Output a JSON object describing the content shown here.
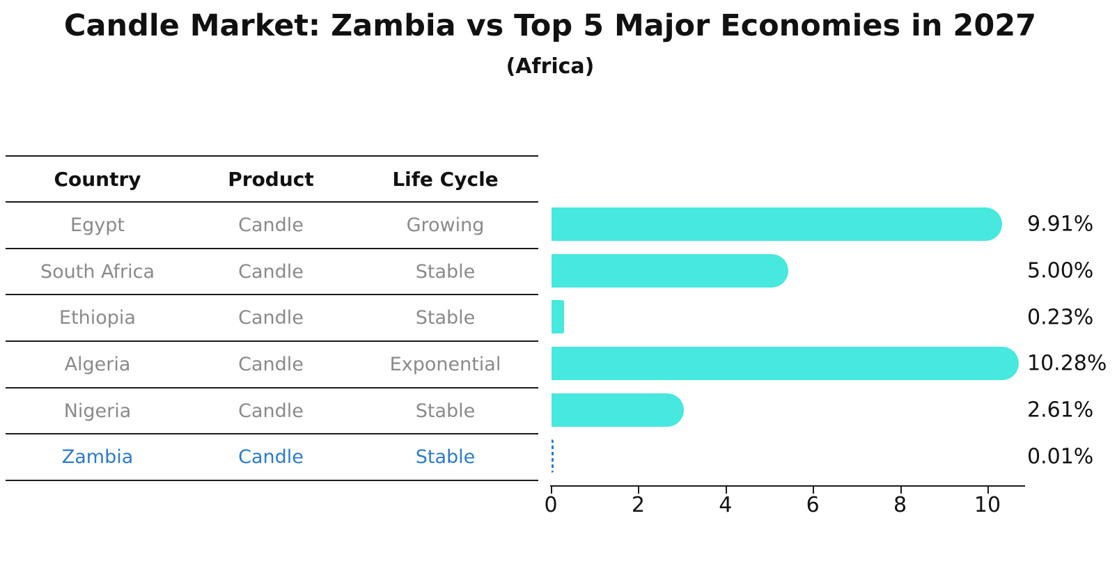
{
  "title": "Candle Market: Zambia vs Top 5 Major Economies in 2027",
  "subtitle": "(Africa)",
  "table": {
    "headers": [
      "Country",
      "Product",
      "Life Cycle"
    ],
    "rows": [
      {
        "country": "Egypt",
        "product": "Candle",
        "life_cycle": "Growing",
        "highlighted": false
      },
      {
        "country": "South Africa",
        "product": "Candle",
        "life_cycle": "Stable",
        "highlighted": false
      },
      {
        "country": "Ethiopia",
        "product": "Candle",
        "life_cycle": "Stable",
        "highlighted": false
      },
      {
        "country": "Algeria",
        "product": "Candle",
        "life_cycle": "Exponential",
        "highlighted": false
      },
      {
        "country": "Nigeria",
        "product": "Candle",
        "life_cycle": "Stable",
        "highlighted": true
      }
    ],
    "highlight_row": {
      "country": "Zambia",
      "product": "Candle",
      "life_cycle": "Stable"
    }
  },
  "chart_data": {
    "type": "bar",
    "orientation": "horizontal",
    "title": "Candle Market: Zambia vs Top 5 Major Economies in 2027",
    "subtitle": "(Africa)",
    "categories": [
      "Egypt",
      "South Africa",
      "Ethiopia",
      "Algeria",
      "Nigeria",
      "Zambia"
    ],
    "values": [
      9.91,
      5.0,
      0.23,
      10.28,
      2.61,
      0.01
    ],
    "value_labels": [
      "9.91%",
      "5.00%",
      "0.23%",
      "10.28%",
      "2.61%",
      "0.01%"
    ],
    "xticks": [
      0,
      2,
      4,
      6,
      8,
      10
    ],
    "xlim": [
      0,
      10.9
    ],
    "grid": false,
    "legend": false,
    "highlight_index": 5,
    "highlight_style": "dashed-blue-outline"
  },
  "colors": {
    "bar": "#47e8de",
    "highlight_blue": "#2b7bd1",
    "table_text_gray": "#8a8a8a",
    "axis_black": "#1a1a1a"
  }
}
